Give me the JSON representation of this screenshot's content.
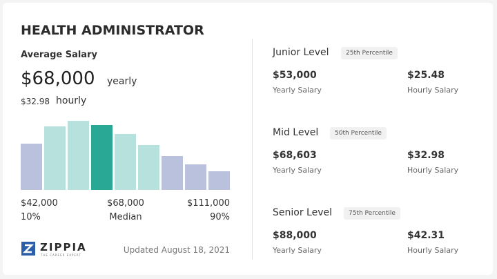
{
  "header": {
    "title": "HEALTH ADMINISTRATOR"
  },
  "average": {
    "label": "Average Salary",
    "yearly": "$68,000",
    "yearly_unit": "yearly",
    "hourly": "$32.98",
    "hourly_unit": "hourly"
  },
  "histogram": {
    "values": [
      67,
      92,
      100,
      94,
      81,
      65,
      49,
      37,
      27
    ],
    "colors": [
      "#b9c1dc",
      "#b6e1dd",
      "#b6e1dd",
      "#2aa896",
      "#b6e1dd",
      "#b6e1dd",
      "#b9c1dc",
      "#b9c1dc",
      "#b9c1dc"
    ]
  },
  "range": {
    "low": "$42,000",
    "median": "$68,000",
    "high": "$111,000",
    "low_pct": "10%",
    "median_label": "Median",
    "high_pct": "90%"
  },
  "brand": {
    "name": "ZIPPIA",
    "tagline": "THE CAREER EXPERT"
  },
  "updated": "Updated August 18, 2021",
  "levels": [
    {
      "name": "Junior Level",
      "percentile": "25th Percentile",
      "yearly": "$53,000",
      "yearly_label": "Yearly Salary",
      "hourly": "$25.48",
      "hourly_label": "Hourly Salary"
    },
    {
      "name": "Mid Level",
      "percentile": "50th Percentile",
      "yearly": "$68,603",
      "yearly_label": "Yearly Salary",
      "hourly": "$32.98",
      "hourly_label": "Hourly Salary"
    },
    {
      "name": "Senior Level",
      "percentile": "75th Percentile",
      "yearly": "$88,000",
      "yearly_label": "Yearly Salary",
      "hourly": "$42.31",
      "hourly_label": "Hourly Salary"
    }
  ]
}
